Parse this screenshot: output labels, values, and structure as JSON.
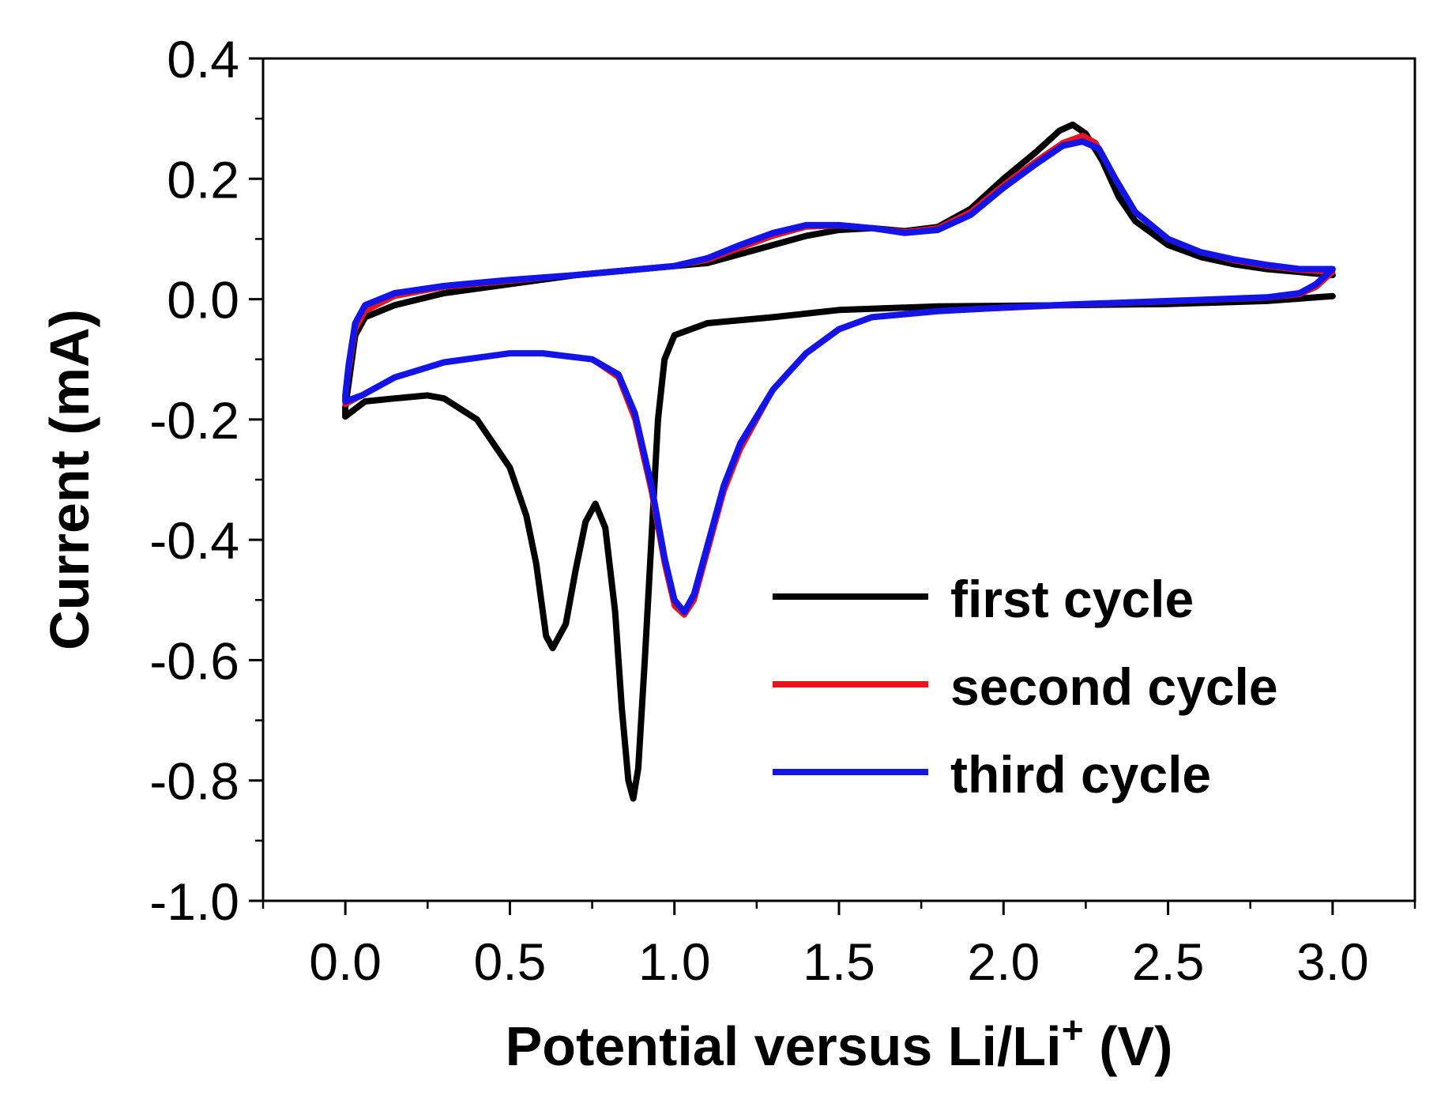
{
  "chart_data": {
    "type": "line",
    "xlabel": "Potential versus Li/Li",
    "xlabel_superscript": "+",
    "xlabel_suffix": " (V)",
    "ylabel": "Current (mA)",
    "xlim": [
      -0.25,
      3.25
    ],
    "ylim": [
      -1.0,
      0.4
    ],
    "x_ticks": [
      "0.0",
      "0.5",
      "1.0",
      "1.5",
      "2.0",
      "2.5",
      "3.0"
    ],
    "x_tick_values": [
      0.0,
      0.5,
      1.0,
      1.5,
      2.0,
      2.5,
      3.0
    ],
    "y_ticks": [
      "0.4",
      "0.2",
      "0.0",
      "-0.2",
      "-0.4",
      "-0.6",
      "-0.8",
      "-1.0"
    ],
    "y_tick_values": [
      0.4,
      0.2,
      0.0,
      -0.2,
      -0.4,
      -0.6,
      -0.8,
      -1.0
    ],
    "legend_position": "lower-right",
    "series": [
      {
        "name": "first cycle",
        "color": "#000000",
        "points": [
          [
            3.0,
            0.005
          ],
          [
            2.8,
            -0.003
          ],
          [
            2.5,
            -0.008
          ],
          [
            2.2,
            -0.01
          ],
          [
            1.8,
            -0.012
          ],
          [
            1.5,
            -0.018
          ],
          [
            1.3,
            -0.03
          ],
          [
            1.1,
            -0.04
          ],
          [
            1.0,
            -0.06
          ],
          [
            0.97,
            -0.1
          ],
          [
            0.95,
            -0.2
          ],
          [
            0.93,
            -0.4
          ],
          [
            0.91,
            -0.6
          ],
          [
            0.89,
            -0.78
          ],
          [
            0.875,
            -0.83
          ],
          [
            0.86,
            -0.8
          ],
          [
            0.84,
            -0.68
          ],
          [
            0.82,
            -0.52
          ],
          [
            0.79,
            -0.38
          ],
          [
            0.76,
            -0.34
          ],
          [
            0.73,
            -0.37
          ],
          [
            0.7,
            -0.45
          ],
          [
            0.67,
            -0.54
          ],
          [
            0.63,
            -0.58
          ],
          [
            0.61,
            -0.56
          ],
          [
            0.58,
            -0.44
          ],
          [
            0.55,
            -0.36
          ],
          [
            0.5,
            -0.28
          ],
          [
            0.4,
            -0.2
          ],
          [
            0.3,
            -0.165
          ],
          [
            0.25,
            -0.16
          ],
          [
            0.15,
            -0.165
          ],
          [
            0.06,
            -0.17
          ],
          [
            0.0,
            -0.195
          ],
          [
            0.0,
            -0.18
          ],
          [
            0.01,
            -0.14
          ],
          [
            0.03,
            -0.06
          ],
          [
            0.06,
            -0.03
          ],
          [
            0.15,
            -0.01
          ],
          [
            0.3,
            0.01
          ],
          [
            0.5,
            0.025
          ],
          [
            0.7,
            0.04
          ],
          [
            0.9,
            0.05
          ],
          [
            1.0,
            0.055
          ],
          [
            1.1,
            0.06
          ],
          [
            1.2,
            0.075
          ],
          [
            1.3,
            0.09
          ],
          [
            1.4,
            0.105
          ],
          [
            1.5,
            0.115
          ],
          [
            1.6,
            0.118
          ],
          [
            1.7,
            0.113
          ],
          [
            1.8,
            0.12
          ],
          [
            1.9,
            0.15
          ],
          [
            2.0,
            0.2
          ],
          [
            2.1,
            0.245
          ],
          [
            2.17,
            0.28
          ],
          [
            2.21,
            0.29
          ],
          [
            2.25,
            0.275
          ],
          [
            2.3,
            0.23
          ],
          [
            2.35,
            0.17
          ],
          [
            2.4,
            0.13
          ],
          [
            2.5,
            0.09
          ],
          [
            2.6,
            0.07
          ],
          [
            2.7,
            0.058
          ],
          [
            2.8,
            0.05
          ],
          [
            2.9,
            0.045
          ],
          [
            3.0,
            0.04
          ]
        ]
      },
      {
        "name": "second cycle",
        "color": "#e8141c",
        "points": [
          [
            3.0,
            0.045
          ],
          [
            2.95,
            0.02
          ],
          [
            2.9,
            0.008
          ],
          [
            2.8,
            0.002
          ],
          [
            2.5,
            -0.004
          ],
          [
            2.2,
            -0.01
          ],
          [
            2.0,
            -0.015
          ],
          [
            1.8,
            -0.02
          ],
          [
            1.6,
            -0.03
          ],
          [
            1.5,
            -0.05
          ],
          [
            1.4,
            -0.09
          ],
          [
            1.3,
            -0.15
          ],
          [
            1.2,
            -0.25
          ],
          [
            1.15,
            -0.32
          ],
          [
            1.1,
            -0.42
          ],
          [
            1.06,
            -0.5
          ],
          [
            1.03,
            -0.525
          ],
          [
            1.0,
            -0.51
          ],
          [
            0.97,
            -0.44
          ],
          [
            0.93,
            -0.32
          ],
          [
            0.88,
            -0.2
          ],
          [
            0.83,
            -0.13
          ],
          [
            0.75,
            -0.1
          ],
          [
            0.6,
            -0.09
          ],
          [
            0.5,
            -0.09
          ],
          [
            0.3,
            -0.105
          ],
          [
            0.15,
            -0.13
          ],
          [
            0.05,
            -0.16
          ],
          [
            0.0,
            -0.175
          ],
          [
            0.0,
            -0.165
          ],
          [
            0.01,
            -0.12
          ],
          [
            0.03,
            -0.05
          ],
          [
            0.06,
            -0.02
          ],
          [
            0.15,
            0.005
          ],
          [
            0.3,
            0.02
          ],
          [
            0.5,
            0.03
          ],
          [
            0.7,
            0.04
          ],
          [
            0.9,
            0.05
          ],
          [
            1.0,
            0.055
          ],
          [
            1.1,
            0.065
          ],
          [
            1.2,
            0.085
          ],
          [
            1.3,
            0.105
          ],
          [
            1.4,
            0.12
          ],
          [
            1.5,
            0.122
          ],
          [
            1.6,
            0.118
          ],
          [
            1.7,
            0.112
          ],
          [
            1.8,
            0.118
          ],
          [
            1.9,
            0.145
          ],
          [
            2.0,
            0.19
          ],
          [
            2.1,
            0.23
          ],
          [
            2.18,
            0.26
          ],
          [
            2.24,
            0.272
          ],
          [
            2.28,
            0.26
          ],
          [
            2.33,
            0.21
          ],
          [
            2.4,
            0.145
          ],
          [
            2.5,
            0.1
          ],
          [
            2.6,
            0.078
          ],
          [
            2.7,
            0.064
          ],
          [
            2.8,
            0.055
          ],
          [
            2.9,
            0.048
          ],
          [
            3.0,
            0.045
          ]
        ]
      },
      {
        "name": "third cycle",
        "color": "#1414e8",
        "points": [
          [
            3.0,
            0.05
          ],
          [
            2.95,
            0.025
          ],
          [
            2.9,
            0.01
          ],
          [
            2.8,
            0.003
          ],
          [
            2.5,
            -0.003
          ],
          [
            2.2,
            -0.009
          ],
          [
            2.0,
            -0.014
          ],
          [
            1.8,
            -0.02
          ],
          [
            1.6,
            -0.03
          ],
          [
            1.5,
            -0.05
          ],
          [
            1.4,
            -0.09
          ],
          [
            1.3,
            -0.15
          ],
          [
            1.2,
            -0.24
          ],
          [
            1.15,
            -0.31
          ],
          [
            1.1,
            -0.41
          ],
          [
            1.06,
            -0.49
          ],
          [
            1.03,
            -0.52
          ],
          [
            1.0,
            -0.5
          ],
          [
            0.97,
            -0.43
          ],
          [
            0.93,
            -0.31
          ],
          [
            0.88,
            -0.19
          ],
          [
            0.83,
            -0.125
          ],
          [
            0.75,
            -0.1
          ],
          [
            0.6,
            -0.09
          ],
          [
            0.5,
            -0.09
          ],
          [
            0.3,
            -0.105
          ],
          [
            0.15,
            -0.13
          ],
          [
            0.05,
            -0.16
          ],
          [
            0.0,
            -0.17
          ],
          [
            0.0,
            -0.16
          ],
          [
            0.01,
            -0.11
          ],
          [
            0.03,
            -0.04
          ],
          [
            0.06,
            -0.01
          ],
          [
            0.15,
            0.01
          ],
          [
            0.3,
            0.022
          ],
          [
            0.5,
            0.032
          ],
          [
            0.7,
            0.04
          ],
          [
            0.9,
            0.05
          ],
          [
            1.0,
            0.055
          ],
          [
            1.1,
            0.068
          ],
          [
            1.2,
            0.09
          ],
          [
            1.3,
            0.11
          ],
          [
            1.4,
            0.123
          ],
          [
            1.5,
            0.123
          ],
          [
            1.6,
            0.118
          ],
          [
            1.7,
            0.11
          ],
          [
            1.8,
            0.115
          ],
          [
            1.9,
            0.14
          ],
          [
            2.0,
            0.185
          ],
          [
            2.1,
            0.225
          ],
          [
            2.18,
            0.255
          ],
          [
            2.24,
            0.262
          ],
          [
            2.29,
            0.25
          ],
          [
            2.34,
            0.2
          ],
          [
            2.4,
            0.145
          ],
          [
            2.5,
            0.1
          ],
          [
            2.6,
            0.078
          ],
          [
            2.7,
            0.066
          ],
          [
            2.8,
            0.057
          ],
          [
            2.9,
            0.05
          ],
          [
            3.0,
            0.05
          ]
        ]
      }
    ]
  }
}
